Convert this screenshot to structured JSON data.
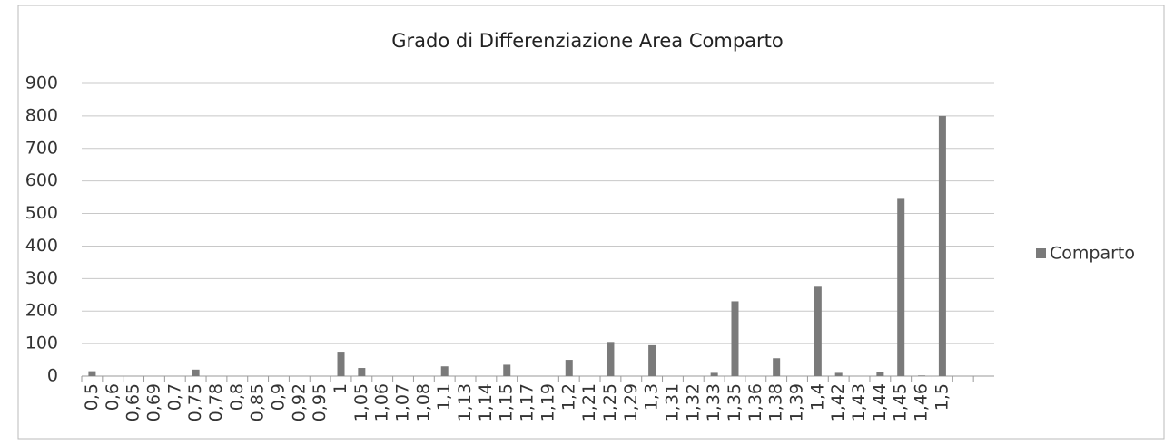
{
  "chart_data": {
    "type": "bar",
    "title": "Grado di Differenziazione Area Comparto",
    "categories": [
      "0,5",
      "0,6",
      "0,65",
      "0,69",
      "0,7",
      "0,75",
      "0,78",
      "0,8",
      "0,85",
      "0,9",
      "0,92",
      "0,95",
      "1",
      "1,05",
      "1,06",
      "1,07",
      "1,08",
      "1,1",
      "1,13",
      "1,14",
      "1,15",
      "1,17",
      "1,19",
      "1,2",
      "1,21",
      "1,25",
      "1,29",
      "1,3",
      "1,31",
      "1,32",
      "1,33",
      "1,35",
      "1,36",
      "1,38",
      "1,39",
      "1,4",
      "1,42",
      "1,43",
      "1,44",
      "1,45",
      "1,46",
      "1,5",
      null,
      null
    ],
    "series": [
      {
        "name": "Comparto",
        "color": "#7a7a7a",
        "values": [
          15,
          0,
          0,
          0,
          0,
          20,
          0,
          0,
          0,
          0,
          0,
          0,
          75,
          25,
          0,
          0,
          0,
          30,
          0,
          0,
          35,
          0,
          0,
          50,
          0,
          105,
          0,
          95,
          0,
          0,
          10,
          230,
          0,
          55,
          0,
          275,
          10,
          0,
          12,
          545,
          2,
          800,
          null,
          null
        ]
      }
    ],
    "ylim": [
      0,
      900
    ],
    "yticks": [
      0,
      100,
      200,
      300,
      400,
      500,
      600,
      700,
      800,
      900
    ],
    "grid": true,
    "legend": "right"
  }
}
